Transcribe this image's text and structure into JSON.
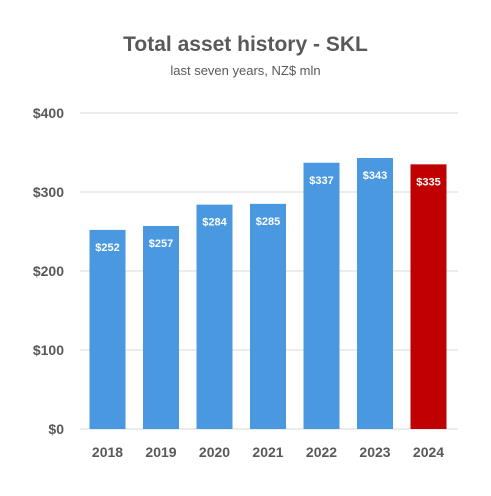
{
  "chart_data": {
    "type": "bar",
    "title": "Total asset history - SKL",
    "subtitle": "last seven years, NZ$ mln",
    "categories": [
      "2018",
      "2019",
      "2020",
      "2021",
      "2022",
      "2023",
      "2024"
    ],
    "values": [
      252,
      257,
      284,
      285,
      337,
      343,
      335
    ],
    "data_labels": [
      "$252",
      "$257",
      "$284",
      "$285",
      "$337",
      "$343",
      "$335"
    ],
    "ylim": [
      0,
      400
    ],
    "yticks": [
      0,
      100,
      200,
      300,
      400
    ],
    "ytick_labels": [
      "$0",
      "$100",
      "$200",
      "$300",
      "$400"
    ],
    "grid": true,
    "legend": "none",
    "colors": {
      "bar": "#4a98e0",
      "highlight": "#c00000",
      "highlight_category": "2024",
      "grid": "#d9d9d9",
      "text": "#595959",
      "data_label": "#ffffff"
    }
  }
}
